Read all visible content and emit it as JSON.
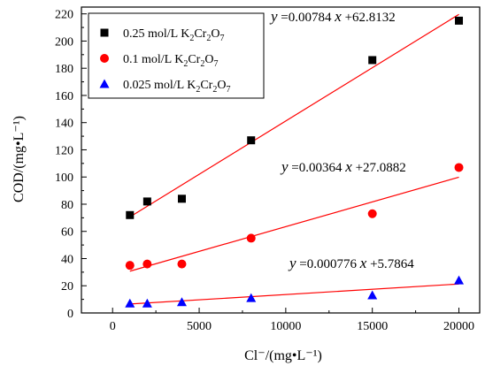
{
  "chart_data": {
    "type": "scatter",
    "xlabel": "Cl⁻/(mg•L⁻¹)",
    "ylabel": "COD/(mg•L⁻¹)",
    "xlim": [
      -1800,
      21200
    ],
    "ylim": [
      0,
      225
    ],
    "x_ticks": [
      0,
      5000,
      10000,
      15000,
      20000
    ],
    "y_ticks": [
      0,
      20,
      40,
      60,
      80,
      100,
      120,
      140,
      160,
      180,
      200,
      220
    ],
    "legend_position": "top-left",
    "series": [
      {
        "name": "0.25 mol/L K2Cr2O7",
        "legend": {
          "base": "0.25 mol/L K",
          "s1": "2",
          "mid": "Cr",
          "s2": "2",
          "o": "O",
          "s3": "7"
        },
        "marker": "square",
        "color": "#000000",
        "x": [
          1000,
          2000,
          4000,
          8000,
          15000,
          20000
        ],
        "y": [
          72,
          82,
          84,
          127,
          186,
          215
        ],
        "fit": {
          "slope": 0.00784,
          "intercept": 62.8132,
          "x_range": [
            1000,
            20000
          ],
          "label": {
            "y": "y",
            "mid": " =0.00784 ",
            "x": "x",
            "tail": " +62.8132"
          }
        }
      },
      {
        "name": "0.1 mol/L K2Cr2O7",
        "legend": {
          "base": "0.1 mol/L K",
          "s1": "2",
          "mid": "Cr",
          "s2": "2",
          "o": "O",
          "s3": "7"
        },
        "marker": "circle",
        "color": "#ff0000",
        "x": [
          1000,
          2000,
          4000,
          8000,
          15000,
          20000
        ],
        "y": [
          35,
          36,
          36,
          55,
          73,
          107
        ],
        "fit": {
          "slope": 0.00364,
          "intercept": 27.0882,
          "x_range": [
            1000,
            20000
          ],
          "label": {
            "y": "y",
            "mid": " =0.00364 ",
            "x": "x",
            "tail": " +27.0882"
          }
        }
      },
      {
        "name": "0.025 mol/L K2Cr2O7",
        "legend": {
          "base": "0.025 mol/L K",
          "s1": "2",
          "mid": "Cr",
          "s2": "2",
          "o": "O",
          "s3": "7"
        },
        "marker": "triangle",
        "color": "#0000ff",
        "x": [
          1000,
          2000,
          4000,
          8000,
          15000,
          20000
        ],
        "y": [
          7,
          7,
          8,
          11,
          13,
          24
        ],
        "fit": {
          "slope": 0.000776,
          "intercept": 5.7864,
          "x_range": [
            1000,
            20000
          ],
          "label": {
            "y": "y",
            "mid": " =0.000776 ",
            "x": "x",
            "tail": " +5.7864"
          }
        }
      }
    ],
    "fit_line_color": "#ff0000"
  }
}
